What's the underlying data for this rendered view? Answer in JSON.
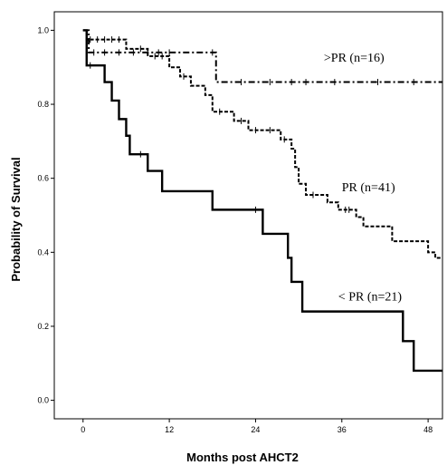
{
  "chart_data": {
    "type": "line",
    "title": "",
    "xlabel": "Months post AHCT2",
    "ylabel": "Probability of Survival",
    "xlim": [
      -4,
      50
    ],
    "ylim": [
      -0.05,
      1.05
    ],
    "xticks": [
      0,
      12,
      24,
      36,
      48
    ],
    "xtick_labels": [
      "0",
      "12",
      "24",
      "36",
      "48"
    ],
    "yticks": [
      0.0,
      0.2,
      0.4,
      0.6,
      0.8,
      1.0
    ],
    "ytick_labels": [
      "0.0",
      "0.2",
      "0.4",
      "0.6",
      "0.8",
      "1.0"
    ],
    "grid": false,
    "series": [
      {
        "name": ">PR (n=16)",
        "style": "dash-dot",
        "color": "#000000",
        "steps": [
          [
            0,
            1.0
          ],
          [
            0.8,
            0.94
          ],
          [
            18.5,
            0.86
          ],
          [
            50,
            0.86
          ]
        ],
        "censor_x": [
          1.5,
          3,
          5,
          7,
          9,
          10.5,
          12,
          18,
          22,
          26,
          29,
          31,
          35,
          41,
          46
        ],
        "label_x": 33.5,
        "label_y": 0.915
      },
      {
        "name": "PR (n=41)",
        "style": "dashed",
        "color": "#000000",
        "steps": [
          [
            0,
            1.0
          ],
          [
            0.5,
            0.975
          ],
          [
            6,
            0.95
          ],
          [
            9,
            0.93
          ],
          [
            12,
            0.9
          ],
          [
            13.5,
            0.875
          ],
          [
            15,
            0.85
          ],
          [
            17,
            0.825
          ],
          [
            18,
            0.78
          ],
          [
            21,
            0.755
          ],
          [
            23,
            0.73
          ],
          [
            27.5,
            0.705
          ],
          [
            29,
            0.68
          ],
          [
            29.5,
            0.63
          ],
          [
            30,
            0.585
          ],
          [
            31,
            0.555
          ],
          [
            34,
            0.535
          ],
          [
            35.5,
            0.515
          ],
          [
            38,
            0.495
          ],
          [
            39,
            0.47
          ],
          [
            43,
            0.43
          ],
          [
            48,
            0.4
          ],
          [
            49,
            0.385
          ],
          [
            50,
            0.385
          ]
        ],
        "censor_x": [
          1,
          2,
          3,
          4,
          5,
          8,
          10,
          11,
          14,
          19,
          22,
          24,
          26,
          28,
          32,
          36.5,
          37
        ],
        "label_x": 36,
        "label_y": 0.565
      },
      {
        "name": "< PR (n=21)",
        "style": "solid",
        "color": "#000000",
        "steps": [
          [
            0,
            1.0
          ],
          [
            0.5,
            0.905
          ],
          [
            3,
            0.86
          ],
          [
            4,
            0.81
          ],
          [
            5,
            0.76
          ],
          [
            6,
            0.715
          ],
          [
            6.5,
            0.665
          ],
          [
            9,
            0.62
          ],
          [
            11,
            0.565
          ],
          [
            18,
            0.515
          ],
          [
            25,
            0.45
          ],
          [
            28.5,
            0.385
          ],
          [
            29,
            0.32
          ],
          [
            30.5,
            0.24
          ],
          [
            44.5,
            0.16
          ],
          [
            46,
            0.08
          ],
          [
            50,
            0.08
          ]
        ],
        "censor_x": [
          1,
          8,
          24
        ],
        "label_x": 35.5,
        "label_y": 0.27
      }
    ]
  }
}
